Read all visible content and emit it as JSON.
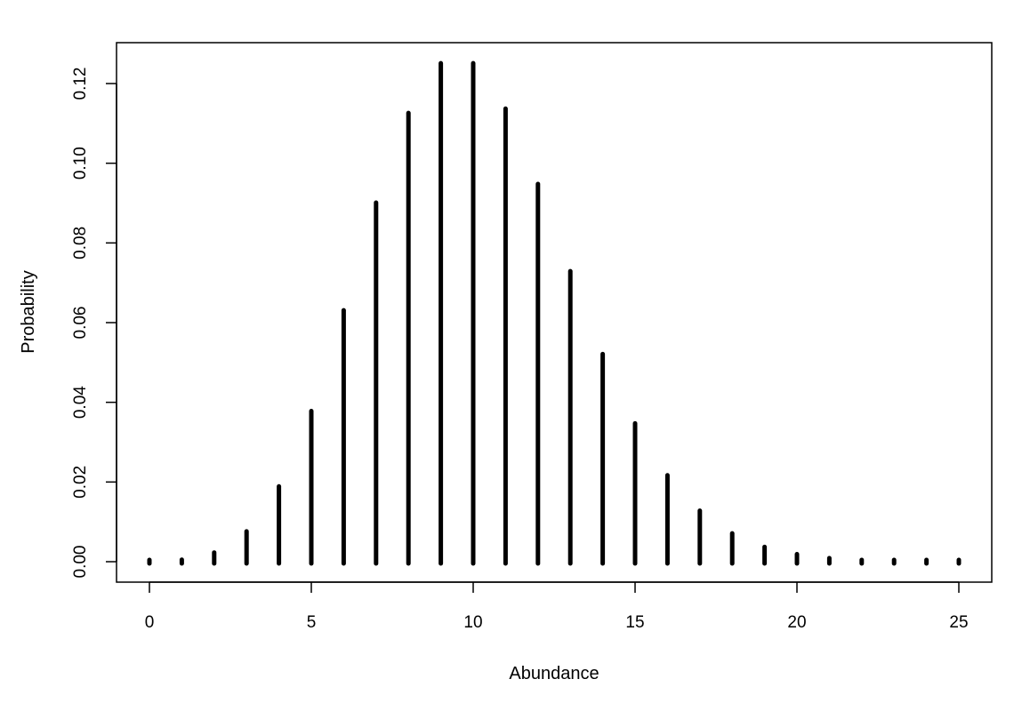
{
  "chart_data": {
    "type": "bar",
    "style": "histogram-spikes",
    "title": "",
    "xlabel": "Abundance",
    "ylabel": "Probability",
    "x": [
      0,
      1,
      2,
      3,
      4,
      5,
      6,
      7,
      8,
      9,
      10,
      11,
      12,
      13,
      14,
      15,
      16,
      17,
      18,
      19,
      20,
      21,
      22,
      23,
      24,
      25
    ],
    "values": [
      5e-05,
      0.0005,
      0.0023,
      0.0076,
      0.0189,
      0.0378,
      0.0631,
      0.0901,
      0.1126,
      0.1251,
      0.1251,
      0.1137,
      0.0948,
      0.0729,
      0.0521,
      0.0347,
      0.0217,
      0.0128,
      0.0071,
      0.0037,
      0.0019,
      0.0009,
      0.0004,
      0.0002,
      0.0001,
      3e-05
    ],
    "xlim": [
      -1,
      26
    ],
    "ylim": [
      -0.005,
      0.13
    ],
    "x_ticks": [
      0,
      5,
      10,
      15,
      20,
      25
    ],
    "y_ticks": [
      0.0,
      0.02,
      0.04,
      0.06,
      0.08,
      0.1,
      0.12
    ],
    "x_tick_labels": [
      "0",
      "5",
      "10",
      "15",
      "20",
      "25"
    ],
    "y_tick_labels": [
      "0.00",
      "0.02",
      "0.04",
      "0.06",
      "0.08",
      "0.10",
      "0.12"
    ],
    "grid": false,
    "legend": "none",
    "bar_color": "#000000"
  }
}
